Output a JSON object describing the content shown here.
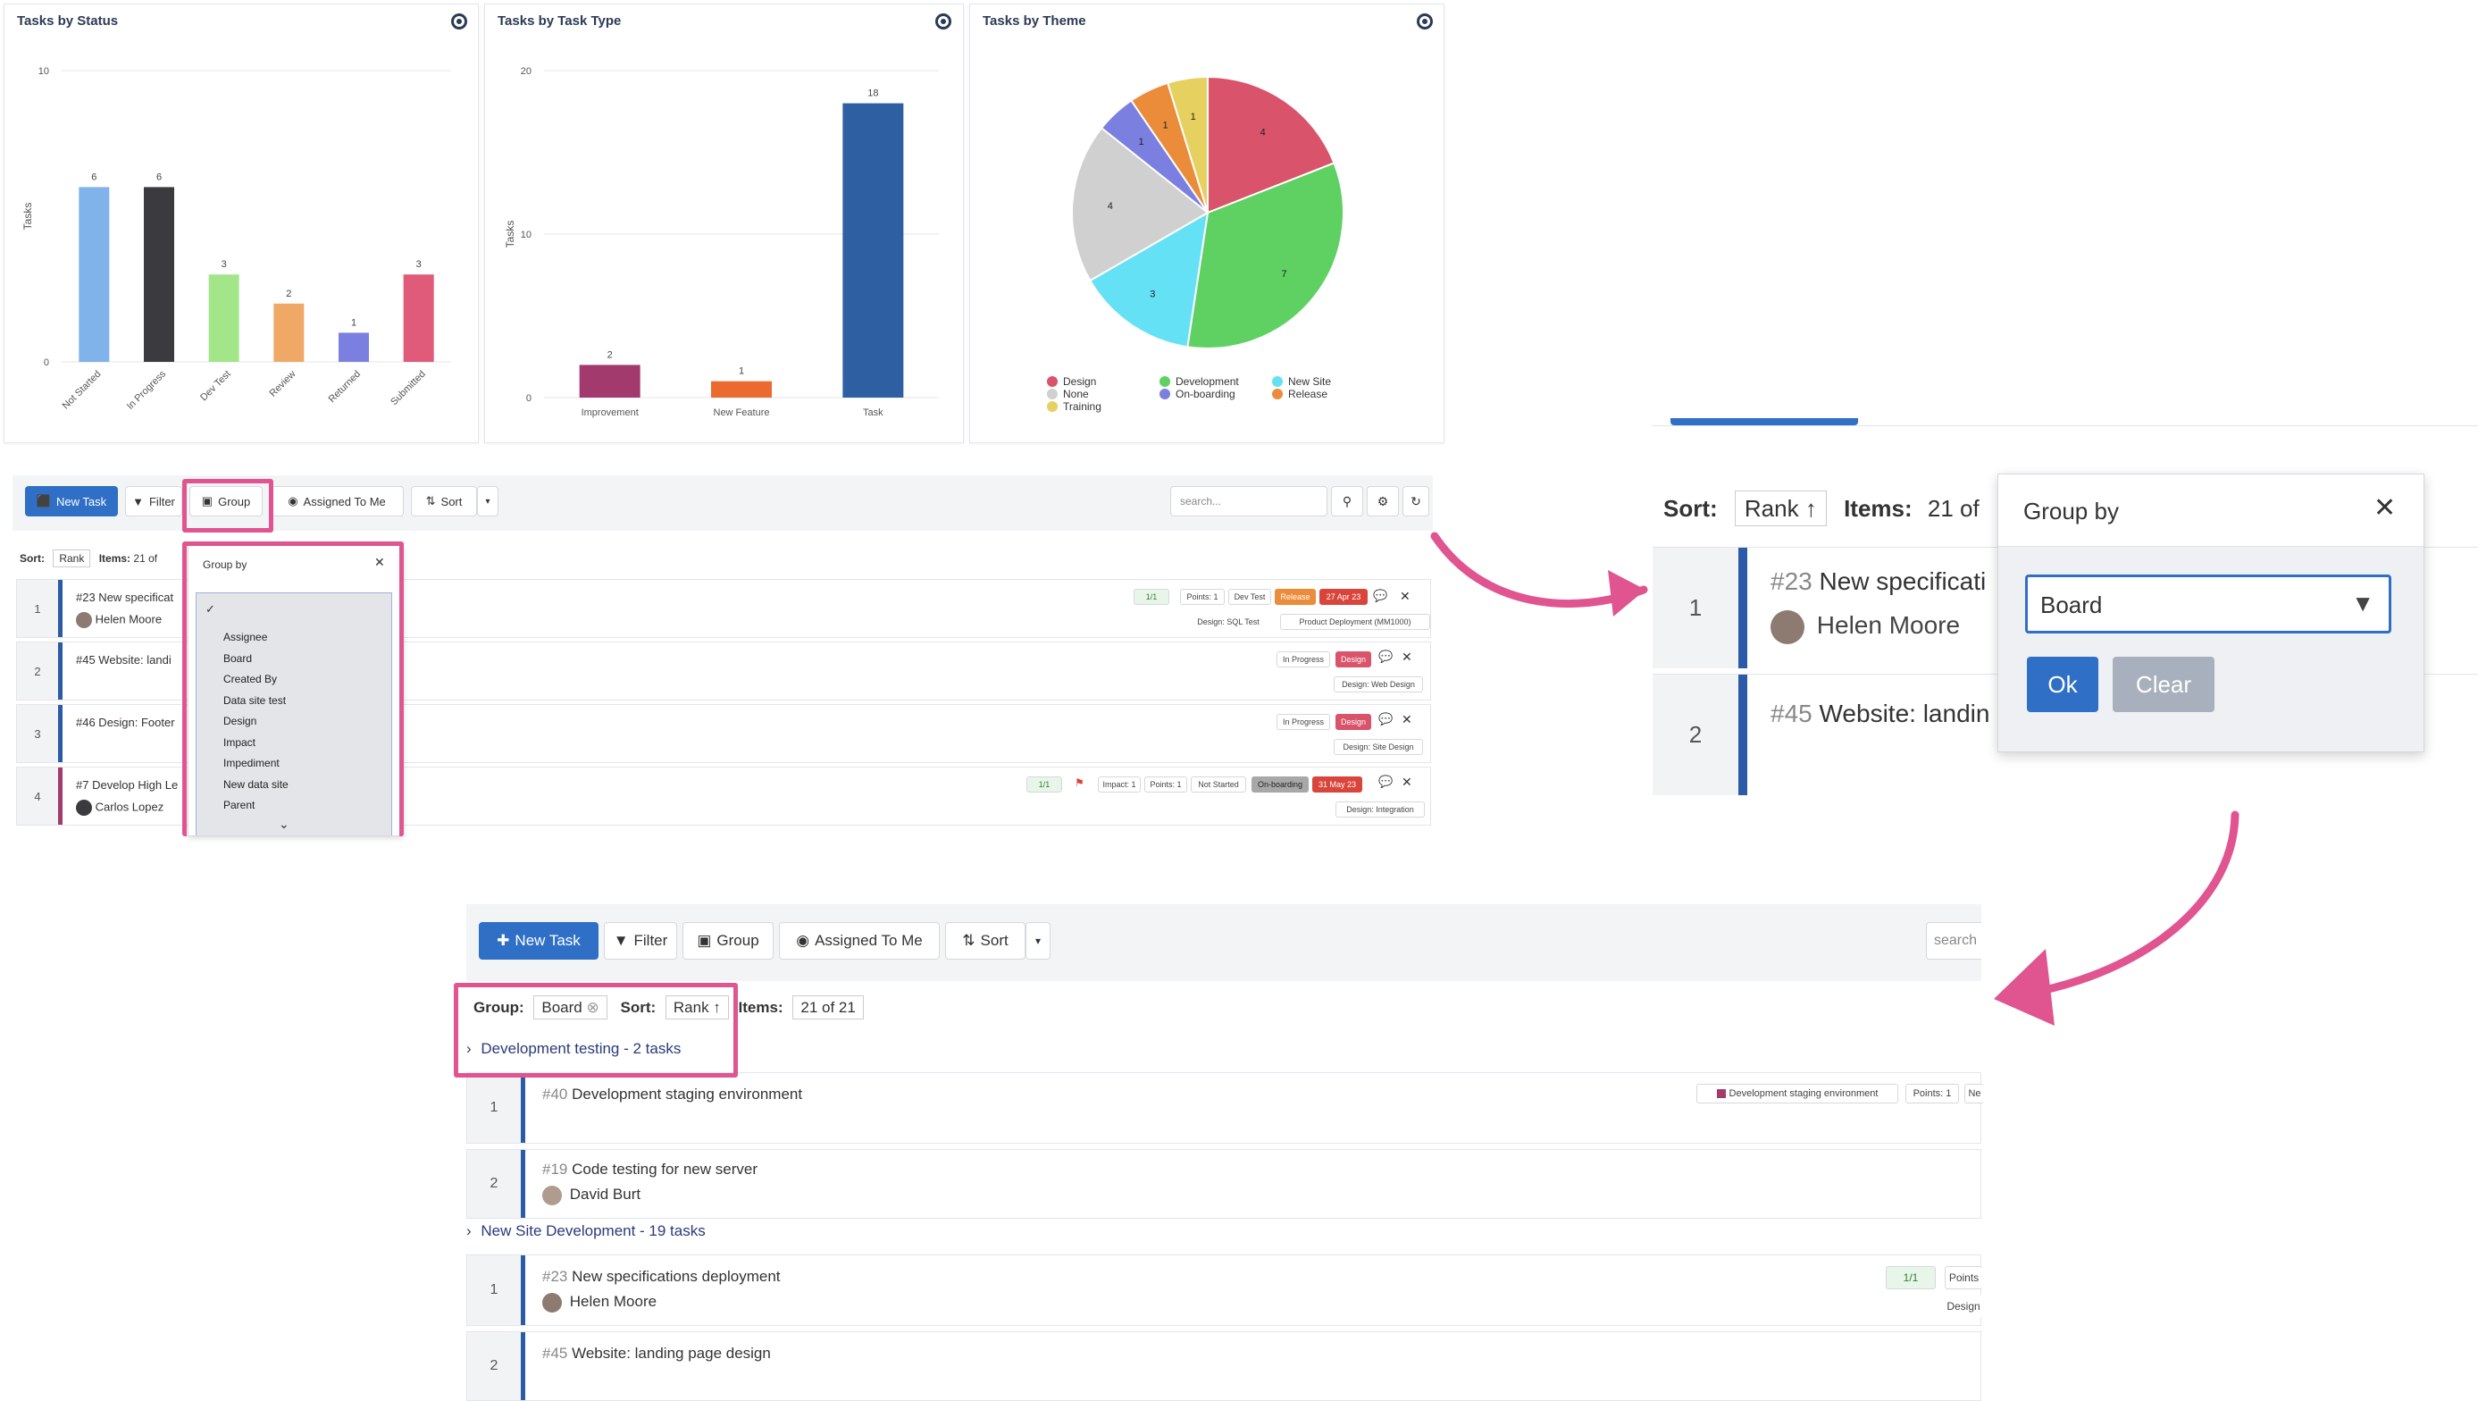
{
  "charts": {
    "status": {
      "title": "Tasks by Status",
      "chart_data": {
        "type": "bar",
        "categories": [
          "Not Started",
          "In Progress",
          "Dev Test",
          "Review",
          "Returned",
          "Submitted"
        ],
        "values": [
          6,
          6,
          3,
          2,
          1,
          3
        ],
        "colors": [
          "#7fb3ea",
          "#3b3b3f",
          "#a3e68a",
          "#f0a866",
          "#7b80e0",
          "#e05a79"
        ],
        "ylabel": "Tasks",
        "ylim": [
          0,
          10
        ],
        "yticks": [
          "10",
          "0"
        ]
      }
    },
    "type": {
      "title": "Tasks by Task Type",
      "chart_data": {
        "type": "bar",
        "categories": [
          "Improvement",
          "New Feature",
          "Task"
        ],
        "values": [
          2,
          1,
          18
        ],
        "colors": [
          "#a33a6e",
          "#ea6a2f",
          "#2f5fa3"
        ],
        "ylabel": "Tasks",
        "ylim": [
          0,
          20
        ],
        "yticks": [
          "20",
          "10",
          "0"
        ]
      }
    },
    "theme": {
      "title": "Tasks by Theme",
      "chart_data": {
        "type": "pie",
        "slices": [
          {
            "label": "Design",
            "value": 4,
            "color": "#d9536b"
          },
          {
            "label": "Development",
            "value": 7,
            "color": "#5fd163"
          },
          {
            "label": "New Site",
            "value": 3,
            "color": "#64e1f5"
          },
          {
            "label": "None",
            "value": 4,
            "color": "#d0d0d0"
          },
          {
            "label": "On-boarding",
            "value": 1,
            "color": "#7b80e0"
          },
          {
            "label": "Release",
            "value": 1,
            "color": "#ea8c3a"
          },
          {
            "label": "Training",
            "value": 1,
            "color": "#e6d05f"
          }
        ],
        "legend": [
          "Design",
          "None",
          "Training",
          "Development",
          "On-boarding",
          "New Site",
          "Release"
        ]
      }
    }
  },
  "toolbar": {
    "new_task": "New Task",
    "filter": "Filter",
    "group": "Group",
    "assigned": "Assigned To Me",
    "sort": "Sort",
    "search_placeholder": "search...",
    "search_placeholder_cut": "search"
  },
  "list1": {
    "sort_label": "Sort:",
    "sort_value": "Rank",
    "items_label": "Items:",
    "items_value": "21 of",
    "rows": [
      {
        "num": "1",
        "title": "#23 New specificat",
        "user": "Helen Moore"
      },
      {
        "num": "2",
        "title": "#45 Website: landi",
        "user": ""
      },
      {
        "num": "3",
        "title": "#46 Design: Footer",
        "user": ""
      },
      {
        "num": "4",
        "title": "#7 Develop High Le",
        "user": "Carlos Lopez"
      }
    ],
    "row1_chips": [
      "1/1",
      "Points: 1",
      "Dev Test",
      "Release",
      "27 Apr 23",
      "Design: SQL Test",
      "Product Deployment (MM1000)"
    ],
    "row2_chips": [
      "In Progress",
      "Design",
      "Design: Web Design"
    ],
    "row3_chips": [
      "In Progress",
      "Design",
      "Design: Site Design"
    ],
    "row4_chips": [
      "1/1",
      "Impact: 1",
      "Points: 1",
      "Not Started",
      "On-boarding",
      "31 May 23",
      "Design: Integration"
    ]
  },
  "dropdown": {
    "title": "Group by",
    "options": [
      "Assignee",
      "Board",
      "Created By",
      "Data site test",
      "Design",
      "Impact",
      "Impediment",
      "New data site",
      "Parent"
    ]
  },
  "dialog": {
    "sort_label": "Sort:",
    "sort_value": "Rank",
    "items_label": "Items:",
    "items_value": "21 of",
    "title": "Group by",
    "select_value": "Board",
    "ok": "Ok",
    "clear": "Clear",
    "row1_num": "1",
    "row1_title_id": "#23",
    "row1_title": "New specificati",
    "row1_user": "Helen Moore",
    "row2_num": "2",
    "row2_title_id": "#45",
    "row2_title": "Website: landin"
  },
  "grouped": {
    "group_label": "Group:",
    "group_value": "Board",
    "sort_label": "Sort:",
    "sort_value": "Rank",
    "items_label": "Items:",
    "items_value": "21 of 21",
    "group1": "Development testing - 2 tasks",
    "group2": "New Site Development - 19 tasks",
    "rows": [
      {
        "num": "1",
        "id": "#40",
        "title": "Development staging environment",
        "user": ""
      },
      {
        "num": "2",
        "id": "#19",
        "title": "Code testing for new server",
        "user": "David Burt"
      },
      {
        "num": "1",
        "id": "#23",
        "title": "New specifications deployment",
        "user": "Helen Moore"
      },
      {
        "num": "2",
        "id": "#45",
        "title": "Website: landing page design",
        "user": ""
      }
    ],
    "row1_chips": [
      "Development staging environment",
      "Points: 1",
      "Ne"
    ],
    "row3_chips": [
      "1/1",
      "Points",
      "Design"
    ]
  }
}
